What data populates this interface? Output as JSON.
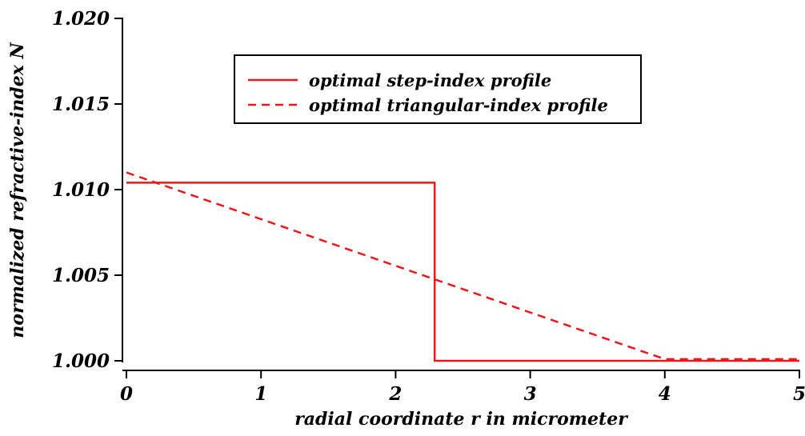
{
  "chart_data": {
    "type": "line",
    "xlabel": "radial coordinate r in micrometer",
    "ylabel": "normalized refractive-index N",
    "xlim": [
      0,
      5
    ],
    "ylim": [
      1.0,
      1.02
    ],
    "x_ticks": [
      0,
      1,
      2,
      3,
      4,
      5
    ],
    "x_tick_labels": [
      "0",
      "1",
      "2",
      "3",
      "4",
      "5"
    ],
    "y_ticks": [
      1.0,
      1.005,
      1.01,
      1.015,
      1.02
    ],
    "y_tick_labels": [
      "1.000",
      "1.005",
      "1.010",
      "1.015",
      "1.020"
    ],
    "grid": false,
    "legend_position": "top-center",
    "series": [
      {
        "name": "optimal step-index profile",
        "style": "solid",
        "color": "#e8191c",
        "x": [
          0,
          2.29,
          2.29,
          5
        ],
        "y": [
          1.0104,
          1.0104,
          1.0,
          1.0
        ]
      },
      {
        "name": "optimal triangular-index profile",
        "style": "dashed",
        "color": "#e8191c",
        "x": [
          0,
          4.0,
          5
        ],
        "y": [
          1.011,
          1.0001,
          1.0001
        ]
      }
    ]
  }
}
